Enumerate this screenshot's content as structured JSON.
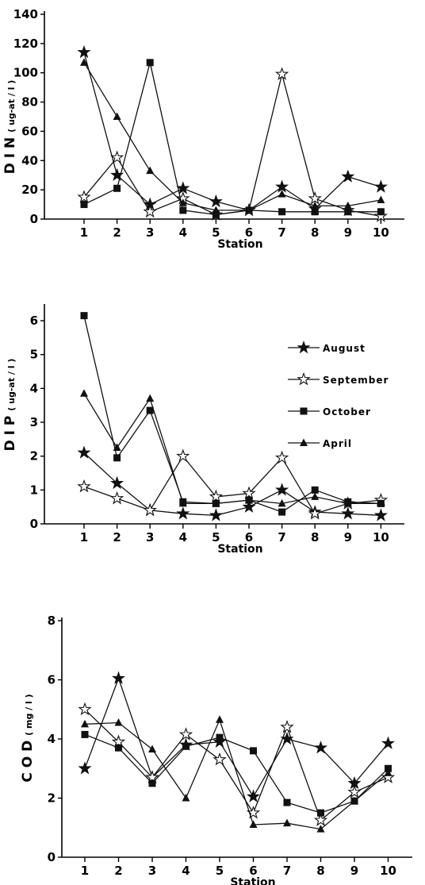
{
  "chart_data": [
    {
      "type": "line",
      "ylabel": "D I N (ug-at / l)",
      "xlabel": "Station",
      "x": [
        1,
        2,
        3,
        4,
        5,
        6,
        7,
        8,
        9,
        10
      ],
      "xticks": [
        "1",
        "2",
        "3",
        "4",
        "5",
        "6",
        "7",
        "8",
        "9",
        "10"
      ],
      "yticks": [
        "0",
        "20",
        "40",
        "60",
        "80",
        "100",
        "120",
        "140"
      ],
      "ylim": [
        0,
        140
      ],
      "series": [
        {
          "name": "August",
          "marker": "filled-star",
          "values": [
            114,
            30,
            10,
            21,
            12,
            6,
            22,
            7,
            29,
            22
          ]
        },
        {
          "name": "September",
          "marker": "open-star",
          "values": [
            15,
            42,
            5,
            14,
            3,
            6,
            99,
            14,
            6,
            2
          ]
        },
        {
          "name": "October",
          "marker": "filled-square",
          "values": [
            10,
            21,
            107,
            6,
            3,
            6,
            5,
            5,
            5,
            5
          ]
        },
        {
          "name": "April",
          "marker": "filled-triangle",
          "values": [
            107,
            70,
            33,
            11,
            6,
            6,
            17,
            9,
            9,
            13
          ]
        }
      ]
    },
    {
      "type": "line",
      "ylabel": "D I P (ug-at / l)",
      "xlabel": "Station",
      "x": [
        1,
        2,
        3,
        4,
        5,
        6,
        7,
        8,
        9,
        10
      ],
      "xticks": [
        "1",
        "2",
        "3",
        "4",
        "5",
        "6",
        "7",
        "8",
        "9",
        "10"
      ],
      "yticks": [
        "0",
        "1",
        "2",
        "3",
        "4",
        "5",
        "6"
      ],
      "ylim": [
        0,
        6.4
      ],
      "legend": {
        "position": "right",
        "entries": [
          {
            "name": "August",
            "marker": "filled-star"
          },
          {
            "name": "September",
            "marker": "open-star"
          },
          {
            "name": "October",
            "marker": "filled-square"
          },
          {
            "name": "April",
            "marker": "filled-triangle"
          }
        ]
      },
      "series": [
        {
          "name": "August",
          "marker": "filled-star",
          "values": [
            2.1,
            1.2,
            0.4,
            0.3,
            0.25,
            0.5,
            1.0,
            0.35,
            0.3,
            0.25
          ]
        },
        {
          "name": "September",
          "marker": "open-star",
          "values": [
            1.1,
            0.75,
            0.4,
            2.0,
            0.8,
            0.9,
            1.95,
            0.3,
            0.6,
            0.7
          ]
        },
        {
          "name": "October",
          "marker": "filled-square",
          "values": [
            6.15,
            1.95,
            3.35,
            0.65,
            0.6,
            0.7,
            0.35,
            1.0,
            0.65,
            0.6
          ]
        },
        {
          "name": "April",
          "marker": "filled-triangle",
          "values": [
            3.85,
            2.25,
            3.7,
            0.6,
            0.6,
            0.7,
            0.6,
            0.8,
            0.6,
            0.6
          ]
        }
      ]
    },
    {
      "type": "line",
      "ylabel": "C O D (mg / l)",
      "xlabel": "Station",
      "x": [
        1,
        2,
        3,
        4,
        5,
        6,
        7,
        8,
        9,
        10
      ],
      "xticks": [
        "1",
        "2",
        "3",
        "4",
        "5",
        "6",
        "7",
        "8",
        "9",
        "10"
      ],
      "yticks": [
        "0",
        "2",
        "4",
        "6",
        "8"
      ],
      "ylim": [
        0,
        8
      ],
      "series": [
        {
          "name": "August",
          "marker": "filled-star",
          "values": [
            3.0,
            6.05,
            2.7,
            3.8,
            3.9,
            2.05,
            4.0,
            3.7,
            2.5,
            3.85
          ]
        },
        {
          "name": "September",
          "marker": "open-star",
          "values": [
            5.0,
            3.9,
            2.7,
            4.15,
            3.3,
            1.5,
            4.4,
            1.25,
            2.2,
            2.7
          ]
        },
        {
          "name": "October",
          "marker": "filled-square",
          "values": [
            4.15,
            3.7,
            2.5,
            3.75,
            4.05,
            3.6,
            1.85,
            1.5,
            1.9,
            3.0
          ]
        },
        {
          "name": "April",
          "marker": "filled-triangle",
          "values": [
            4.5,
            4.55,
            3.65,
            2.0,
            4.65,
            1.1,
            1.15,
            0.95,
            1.9,
            2.85
          ]
        }
      ]
    }
  ]
}
